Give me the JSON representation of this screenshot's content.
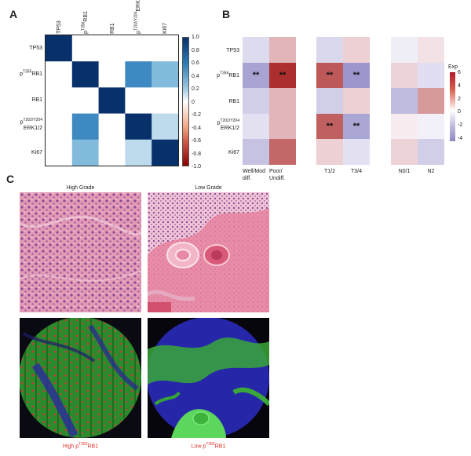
{
  "panel_a": {
    "letter": "A",
    "labels": [
      "TP53",
      "pT356RB1",
      "RB1",
      "pT202/Y204ERK1/2",
      "Ki67"
    ],
    "label_parts": [
      {
        "pre": "",
        "sup": "",
        "post": "TP53"
      },
      {
        "pre": "p",
        "sup": "T356",
        "post": "RB1"
      },
      {
        "pre": "",
        "sup": "",
        "post": "RB1"
      },
      {
        "pre": "p",
        "sup": "T202/Y204",
        "post": "ERK1/2"
      },
      {
        "pre": "",
        "sup": "",
        "post": "Ki67"
      }
    ],
    "matrix": [
      [
        1.0,
        0,
        0,
        0,
        0
      ],
      [
        0,
        1.0,
        0,
        0.68,
        0.42
      ],
      [
        0,
        0,
        1.0,
        0,
        0
      ],
      [
        0,
        0.68,
        0,
        1.0,
        0.22
      ],
      [
        0,
        0.42,
        0,
        0.22,
        1.0
      ]
    ],
    "colorbar_ticks": [
      "1.0",
      "0.8",
      "0.6",
      "0.4",
      "0.2",
      "0",
      "-0.2",
      "-0.4",
      "-0.6",
      "-0.8",
      "-1.0"
    ]
  },
  "panel_b": {
    "letter": "B",
    "rows": [
      "TP53",
      "pT356RB1",
      "RB1",
      "pT202/Y204ERK1/2",
      "Ki67"
    ],
    "groups": [
      {
        "columns": [
          "Well/Mod diff.",
          "Poor/ Undiff."
        ]
      },
      {
        "columns": [
          "T1/2",
          "T3/4"
        ]
      },
      {
        "columns": [
          "N0/1",
          "N2"
        ]
      }
    ],
    "values": [
      [
        -0.8,
        1.6,
        -0.9,
        0.9,
        -0.2,
        0.4
      ],
      [
        -2.6,
        5.4,
        4.2,
        -3.0,
        0.8,
        -0.7
      ],
      [
        -1.2,
        1.6,
        -1.2,
        0.9,
        -1.8,
        2.4
      ],
      [
        -0.6,
        1.6,
        4.0,
        -2.5,
        0.1,
        -0.1
      ],
      [
        -1.6,
        3.8,
        0.9,
        -0.6,
        0.8,
        -1.2
      ]
    ],
    "significance": [
      [
        "",
        "",
        "",
        "",
        "",
        ""
      ],
      [
        "**",
        "**",
        "**",
        "**",
        "",
        ""
      ],
      [
        "",
        "",
        "",
        "",
        "",
        ""
      ],
      [
        "",
        "",
        "**",
        "**",
        "",
        ""
      ],
      [
        "",
        "",
        "",
        "",
        "",
        ""
      ]
    ],
    "legend_title": "Exp",
    "legend_ticks": [
      "6",
      "4",
      "2",
      "0",
      "-2",
      "-4"
    ]
  },
  "panel_c": {
    "letter": "C",
    "he_labels": [
      "High Grade",
      "Low Grade"
    ],
    "if_labels": [
      {
        "pre": "High p",
        "sup": "T356",
        "post": "RB1"
      },
      {
        "pre": "Low p",
        "sup": "T356",
        "post": "RB1"
      }
    ]
  }
}
